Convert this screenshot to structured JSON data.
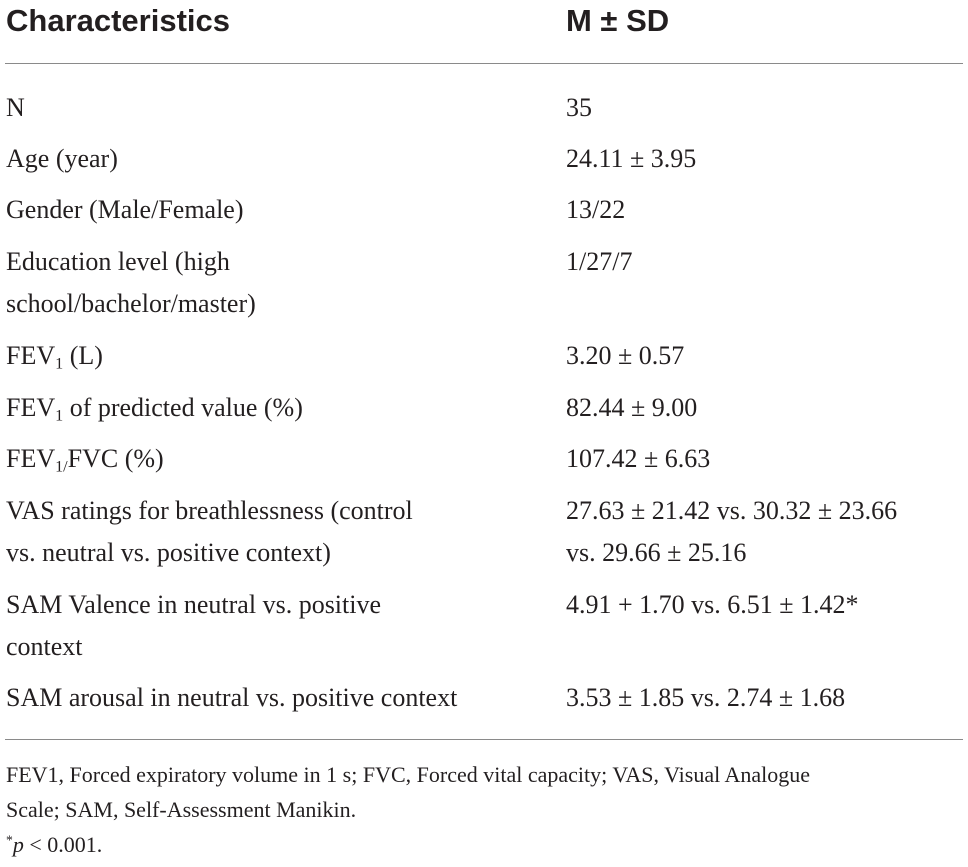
{
  "table": {
    "headers": {
      "characteristics": "Characteristics",
      "stat": "M ± SD"
    },
    "rows": [
      {
        "label": [
          "N"
        ],
        "value": [
          "35"
        ]
      },
      {
        "label": [
          "Age (year)"
        ],
        "value": [
          "24.11 ± 3.95"
        ]
      },
      {
        "label": [
          "Gender (Male/Female)"
        ],
        "value": [
          "13/22"
        ]
      },
      {
        "label": [
          "Education level (high",
          "school/bachelor/master)"
        ],
        "value": [
          "1/27/7"
        ]
      },
      {
        "label_pre": "FEV",
        "label_sub": "1",
        "label_post": " (L)",
        "value": [
          "3.20 ± 0.57"
        ]
      },
      {
        "label_pre": "FEV",
        "label_sub": "1",
        "label_post": " of predicted value (%)",
        "value": [
          "82.44 ± 9.00"
        ]
      },
      {
        "label_pre": "FEV",
        "label_sub": "1/",
        "label_post": "FVC (%)",
        "value": [
          "107.42 ± 6.63"
        ]
      },
      {
        "label": [
          "VAS ratings for breathlessness (control",
          "vs. neutral vs. positive context)"
        ],
        "value": [
          "27.63 ± 21.42 vs. 30.32 ± 23.66",
          "vs. 29.66 ± 25.16"
        ]
      },
      {
        "label": [
          "SAM Valence in neutral vs. positive",
          "context"
        ],
        "value": [
          "4.91 + 1.70 vs. 6.51 ± 1.42*"
        ]
      },
      {
        "label": [
          "SAM arousal in neutral vs. positive context"
        ],
        "value": [
          "3.53 ± 1.85 vs. 2.74 ± 1.68"
        ]
      }
    ]
  },
  "footnote": {
    "lines": [
      "FEV1, Forced expiratory volume in 1 s; FVC, Forced vital capacity; VAS, Visual Analogue",
      "Scale; SAM, Self-Assessment Manikin."
    ],
    "sig_mark": "*",
    "sig_p": "p",
    "sig_rest": " < 0.001."
  }
}
